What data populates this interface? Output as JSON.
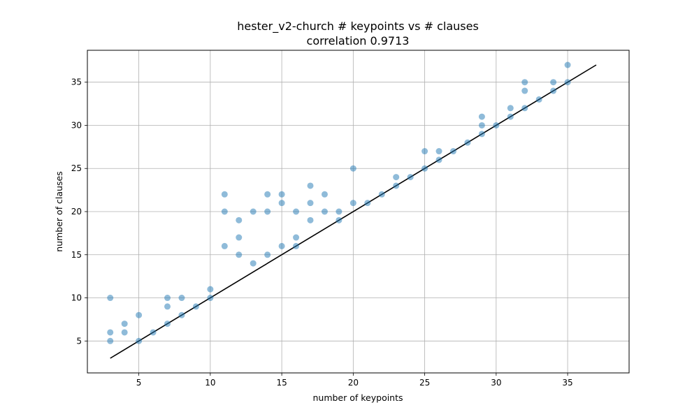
{
  "chart_data": {
    "type": "scatter",
    "title": "hester_v2-church # keypoints vs # clauses",
    "subtitle": "correlation 0.9713",
    "xlabel": "number of keypoints",
    "ylabel": "number of clauses",
    "xlim": [
      1.4,
      39.3
    ],
    "ylim": [
      1.3,
      38.7
    ],
    "xticks": [
      5,
      10,
      15,
      20,
      25,
      30,
      35
    ],
    "yticks": [
      5,
      10,
      15,
      20,
      25,
      30,
      35
    ],
    "grid": true,
    "colors": {
      "points": "#1f77b4",
      "line": "#000000",
      "grid": "#b0b0b0"
    },
    "series": [
      {
        "points": [
          [
            3,
            10
          ],
          [
            3,
            6
          ],
          [
            3,
            5
          ],
          [
            4,
            7
          ],
          [
            4,
            6
          ],
          [
            5,
            8
          ],
          [
            5,
            5
          ],
          [
            6,
            6
          ],
          [
            7,
            10
          ],
          [
            7,
            9
          ],
          [
            7,
            7
          ],
          [
            8,
            10
          ],
          [
            8,
            8
          ],
          [
            9,
            9
          ],
          [
            10,
            11
          ],
          [
            10,
            10
          ],
          [
            11,
            22
          ],
          [
            11,
            20
          ],
          [
            11,
            16
          ],
          [
            12,
            19
          ],
          [
            12,
            17
          ],
          [
            12,
            15
          ],
          [
            13,
            20
          ],
          [
            13,
            14
          ],
          [
            14,
            22
          ],
          [
            14,
            20
          ],
          [
            14,
            15
          ],
          [
            15,
            22
          ],
          [
            15,
            21
          ],
          [
            15,
            16
          ],
          [
            16,
            20
          ],
          [
            16,
            17
          ],
          [
            16,
            16
          ],
          [
            17,
            23
          ],
          [
            17,
            21
          ],
          [
            17,
            19
          ],
          [
            18,
            22
          ],
          [
            18,
            20
          ],
          [
            19,
            20
          ],
          [
            19,
            19
          ],
          [
            20,
            25
          ],
          [
            20,
            21
          ],
          [
            21,
            21
          ],
          [
            22,
            22
          ],
          [
            23,
            24
          ],
          [
            23,
            23
          ],
          [
            24,
            24
          ],
          [
            25,
            27
          ],
          [
            25,
            25
          ],
          [
            26,
            27
          ],
          [
            26,
            26
          ],
          [
            27,
            27
          ],
          [
            28,
            28
          ],
          [
            29,
            31
          ],
          [
            29,
            30
          ],
          [
            29,
            29
          ],
          [
            30,
            30
          ],
          [
            31,
            32
          ],
          [
            31,
            31
          ],
          [
            32,
            35
          ],
          [
            32,
            34
          ],
          [
            32,
            32
          ],
          [
            33,
            33
          ],
          [
            34,
            35
          ],
          [
            34,
            34
          ],
          [
            35,
            37
          ],
          [
            35,
            35
          ]
        ]
      },
      {
        "type": "line",
        "x": [
          3,
          37
        ],
        "y": [
          3,
          37
        ]
      }
    ]
  }
}
